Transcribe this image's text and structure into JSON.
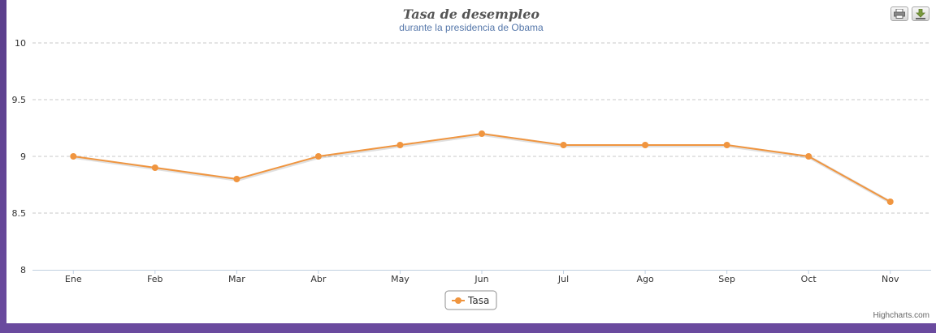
{
  "chart_data": {
    "type": "line",
    "title": "Tasa de desempleo",
    "subtitle": "durante la presidencia de Obama",
    "categories": [
      "Ene",
      "Feb",
      "Mar",
      "Abr",
      "May",
      "Jun",
      "Jul",
      "Ago",
      "Sep",
      "Oct",
      "Nov"
    ],
    "series": [
      {
        "name": "Tasa",
        "values": [
          9.0,
          8.9,
          8.8,
          9.0,
          9.1,
          9.2,
          9.1,
          9.1,
          9.1,
          9.0,
          8.6
        ]
      }
    ],
    "ylim": [
      8,
      10
    ],
    "yticks": [
      "8",
      "8.5",
      "9",
      "9.5",
      "10"
    ],
    "xlabel": "",
    "ylabel": "",
    "grid": true,
    "legend_position": "bottom-center",
    "series_color": "#f0953f"
  },
  "credits": "Highcharts.com",
  "toolbar": {
    "print_icon": "printer-icon",
    "export_icon": "download-icon"
  }
}
